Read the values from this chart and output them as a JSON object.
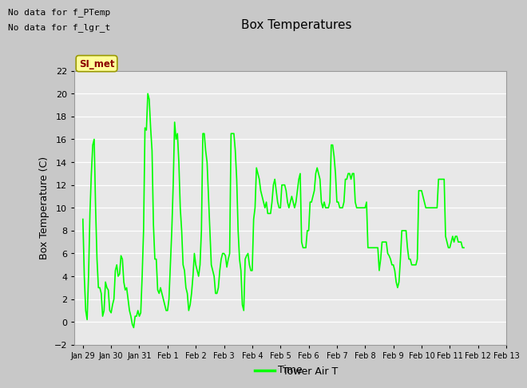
{
  "title": "Box Temperatures",
  "xlabel": "Time",
  "ylabel": "Box Temperature (C)",
  "ylim": [
    -2,
    22
  ],
  "yticks": [
    -2,
    0,
    2,
    4,
    6,
    8,
    10,
    12,
    14,
    16,
    18,
    20,
    22
  ],
  "line_color": "#00FF00",
  "line_width": 1.2,
  "bg_color": "#E8E8E8",
  "fig_bg": "#C8C8C8",
  "text_no_data1": "No data for f_PTemp",
  "text_no_data2": "No data for f_lgr_t",
  "tab_label": "SI_met",
  "tab_color": "#FFFF99",
  "tab_text_color": "#8B0000",
  "legend_label": "Tower Air T",
  "dates": [
    "Jan 29",
    "Jan 30",
    "Jan 31",
    "Feb 1",
    "Feb 2",
    "Feb 3",
    "Feb 4",
    "Feb 5",
    "Feb 6",
    "Feb 7",
    "Feb 8",
    "Feb 9",
    "Feb 10",
    "Feb 11",
    "Feb 12",
    "Feb 13"
  ],
  "data_points": [
    [
      0.0,
      9.0
    ],
    [
      0.05,
      4.0
    ],
    [
      0.1,
      1.0
    ],
    [
      0.15,
      0.2
    ],
    [
      0.2,
      4.0
    ],
    [
      0.25,
      9.5
    ],
    [
      0.3,
      13.0
    ],
    [
      0.35,
      15.5
    ],
    [
      0.4,
      16.0
    ],
    [
      0.45,
      10.0
    ],
    [
      0.5,
      5.5
    ],
    [
      0.55,
      3.0
    ],
    [
      0.6,
      3.0
    ],
    [
      0.65,
      2.5
    ],
    [
      0.7,
      0.5
    ],
    [
      0.75,
      1.0
    ],
    [
      0.8,
      3.5
    ],
    [
      0.85,
      3.0
    ],
    [
      0.9,
      2.8
    ],
    [
      0.95,
      1.0
    ],
    [
      1.0,
      0.8
    ],
    [
      1.05,
      1.5
    ],
    [
      1.1,
      2.0
    ],
    [
      1.15,
      4.5
    ],
    [
      1.2,
      5.0
    ],
    [
      1.25,
      4.0
    ],
    [
      1.3,
      4.2
    ],
    [
      1.35,
      5.8
    ],
    [
      1.4,
      5.5
    ],
    [
      1.45,
      3.5
    ],
    [
      1.5,
      2.8
    ],
    [
      1.55,
      3.0
    ],
    [
      1.6,
      2.0
    ],
    [
      1.65,
      1.0
    ],
    [
      1.7,
      0.5
    ],
    [
      1.75,
      -0.2
    ],
    [
      1.8,
      -0.5
    ],
    [
      1.85,
      0.5
    ],
    [
      1.9,
      0.5
    ],
    [
      1.95,
      1.0
    ],
    [
      2.0,
      0.5
    ],
    [
      2.05,
      0.8
    ],
    [
      2.1,
      4.0
    ],
    [
      2.15,
      8.0
    ],
    [
      2.2,
      17.0
    ],
    [
      2.25,
      16.8
    ],
    [
      2.3,
      20.0
    ],
    [
      2.35,
      19.5
    ],
    [
      2.4,
      17.0
    ],
    [
      2.45,
      15.0
    ],
    [
      2.5,
      8.5
    ],
    [
      2.55,
      5.5
    ],
    [
      2.6,
      5.5
    ],
    [
      2.65,
      2.8
    ],
    [
      2.7,
      2.5
    ],
    [
      2.75,
      3.0
    ],
    [
      2.8,
      2.5
    ],
    [
      2.85,
      2.0
    ],
    [
      2.9,
      1.5
    ],
    [
      2.95,
      1.0
    ],
    [
      3.0,
      1.0
    ],
    [
      3.05,
      2.0
    ],
    [
      3.1,
      5.0
    ],
    [
      3.15,
      8.0
    ],
    [
      3.2,
      12.0
    ],
    [
      3.25,
      17.5
    ],
    [
      3.3,
      16.0
    ],
    [
      3.35,
      16.5
    ],
    [
      3.4,
      14.0
    ],
    [
      3.45,
      10.0
    ],
    [
      3.5,
      8.0
    ],
    [
      3.55,
      5.0
    ],
    [
      3.6,
      4.5
    ],
    [
      3.65,
      3.0
    ],
    [
      3.7,
      2.5
    ],
    [
      3.75,
      1.0
    ],
    [
      3.8,
      1.5
    ],
    [
      3.85,
      2.5
    ],
    [
      3.9,
      4.0
    ],
    [
      3.95,
      6.0
    ],
    [
      4.0,
      5.0
    ],
    [
      4.05,
      4.5
    ],
    [
      4.1,
      4.0
    ],
    [
      4.15,
      5.0
    ],
    [
      4.2,
      8.0
    ],
    [
      4.25,
      16.5
    ],
    [
      4.3,
      16.5
    ],
    [
      4.35,
      15.0
    ],
    [
      4.4,
      14.0
    ],
    [
      4.45,
      11.0
    ],
    [
      4.5,
      8.0
    ],
    [
      4.55,
      5.0
    ],
    [
      4.6,
      4.5
    ],
    [
      4.65,
      4.0
    ],
    [
      4.7,
      2.5
    ],
    [
      4.75,
      2.5
    ],
    [
      4.8,
      3.0
    ],
    [
      4.85,
      4.5
    ],
    [
      4.9,
      5.5
    ],
    [
      4.95,
      6.0
    ],
    [
      5.0,
      6.0
    ],
    [
      5.05,
      5.8
    ],
    [
      5.1,
      4.8
    ],
    [
      5.15,
      5.5
    ],
    [
      5.2,
      6.0
    ],
    [
      5.25,
      16.5
    ],
    [
      5.3,
      16.5
    ],
    [
      5.35,
      16.5
    ],
    [
      5.4,
      15.0
    ],
    [
      5.45,
      12.5
    ],
    [
      5.5,
      8.0
    ],
    [
      5.55,
      5.5
    ],
    [
      5.6,
      4.5
    ],
    [
      5.65,
      1.5
    ],
    [
      5.7,
      1.0
    ],
    [
      5.75,
      5.5
    ],
    [
      5.8,
      5.8
    ],
    [
      5.85,
      6.0
    ],
    [
      5.9,
      5.0
    ],
    [
      5.95,
      4.5
    ],
    [
      6.0,
      4.5
    ],
    [
      6.05,
      9.0
    ],
    [
      6.1,
      10.0
    ],
    [
      6.15,
      13.5
    ],
    [
      6.2,
      13.0
    ],
    [
      6.25,
      12.5
    ],
    [
      6.3,
      11.5
    ],
    [
      6.35,
      11.0
    ],
    [
      6.4,
      10.5
    ],
    [
      6.45,
      10.0
    ],
    [
      6.5,
      10.5
    ],
    [
      6.55,
      9.5
    ],
    [
      6.6,
      9.5
    ],
    [
      6.65,
      9.5
    ],
    [
      6.7,
      10.5
    ],
    [
      6.75,
      12.0
    ],
    [
      6.8,
      12.5
    ],
    [
      6.85,
      11.5
    ],
    [
      6.9,
      10.5
    ],
    [
      6.95,
      10.0
    ],
    [
      7.0,
      10.0
    ],
    [
      7.05,
      12.0
    ],
    [
      7.1,
      12.0
    ],
    [
      7.15,
      12.0
    ],
    [
      7.2,
      11.5
    ],
    [
      7.25,
      10.5
    ],
    [
      7.3,
      10.0
    ],
    [
      7.35,
      10.5
    ],
    [
      7.4,
      11.0
    ],
    [
      7.45,
      10.5
    ],
    [
      7.5,
      10.0
    ],
    [
      7.55,
      10.5
    ],
    [
      7.6,
      11.5
    ],
    [
      7.65,
      12.5
    ],
    [
      7.7,
      13.0
    ],
    [
      7.75,
      7.0
    ],
    [
      7.8,
      6.5
    ],
    [
      7.85,
      6.5
    ],
    [
      7.9,
      6.5
    ],
    [
      7.95,
      8.0
    ],
    [
      8.0,
      8.0
    ],
    [
      8.05,
      10.5
    ],
    [
      8.1,
      10.5
    ],
    [
      8.15,
      11.0
    ],
    [
      8.2,
      11.5
    ],
    [
      8.25,
      13.0
    ],
    [
      8.3,
      13.5
    ],
    [
      8.35,
      13.0
    ],
    [
      8.4,
      12.5
    ],
    [
      8.45,
      10.5
    ],
    [
      8.5,
      10.0
    ],
    [
      8.55,
      10.5
    ],
    [
      8.6,
      10.0
    ],
    [
      8.65,
      10.0
    ],
    [
      8.7,
      10.0
    ],
    [
      8.75,
      10.5
    ],
    [
      8.8,
      15.5
    ],
    [
      8.85,
      15.5
    ],
    [
      8.9,
      14.5
    ],
    [
      8.95,
      13.0
    ],
    [
      9.0,
      10.5
    ],
    [
      9.05,
      10.5
    ],
    [
      9.1,
      10.0
    ],
    [
      9.15,
      10.0
    ],
    [
      9.2,
      10.0
    ],
    [
      9.25,
      10.5
    ],
    [
      9.3,
      12.5
    ],
    [
      9.35,
      12.5
    ],
    [
      9.4,
      13.0
    ],
    [
      9.45,
      13.0
    ],
    [
      9.5,
      12.5
    ],
    [
      9.55,
      13.0
    ],
    [
      9.6,
      13.0
    ],
    [
      9.65,
      10.5
    ],
    [
      9.7,
      10.0
    ],
    [
      9.75,
      10.0
    ],
    [
      9.8,
      10.0
    ],
    [
      9.85,
      10.0
    ],
    [
      9.9,
      10.0
    ],
    [
      9.95,
      10.0
    ],
    [
      10.0,
      10.0
    ],
    [
      10.05,
      10.5
    ],
    [
      10.1,
      6.5
    ],
    [
      10.15,
      6.5
    ],
    [
      10.2,
      6.5
    ],
    [
      10.25,
      6.5
    ],
    [
      10.3,
      6.5
    ],
    [
      10.35,
      6.5
    ],
    [
      10.4,
      6.5
    ],
    [
      10.45,
      6.5
    ],
    [
      10.5,
      4.5
    ],
    [
      10.55,
      5.5
    ],
    [
      10.6,
      7.0
    ],
    [
      10.65,
      7.0
    ],
    [
      10.7,
      7.0
    ],
    [
      10.75,
      7.0
    ],
    [
      10.8,
      6.0
    ],
    [
      10.85,
      5.8
    ],
    [
      10.9,
      5.5
    ],
    [
      10.95,
      5.0
    ],
    [
      11.0,
      5.0
    ],
    [
      11.05,
      4.5
    ],
    [
      11.1,
      3.5
    ],
    [
      11.15,
      3.0
    ],
    [
      11.2,
      3.5
    ],
    [
      11.25,
      5.5
    ],
    [
      11.3,
      8.0
    ],
    [
      11.35,
      8.0
    ],
    [
      11.4,
      8.0
    ],
    [
      11.45,
      8.0
    ],
    [
      11.5,
      6.5
    ],
    [
      11.55,
      5.5
    ],
    [
      11.6,
      5.5
    ],
    [
      11.65,
      5.0
    ],
    [
      11.7,
      5.0
    ],
    [
      11.75,
      5.0
    ],
    [
      11.8,
      5.0
    ],
    [
      11.85,
      5.5
    ],
    [
      11.9,
      11.5
    ],
    [
      11.95,
      11.5
    ],
    [
      12.0,
      11.5
    ],
    [
      12.05,
      11.0
    ],
    [
      12.1,
      10.5
    ],
    [
      12.15,
      10.0
    ],
    [
      12.2,
      10.0
    ],
    [
      12.25,
      10.0
    ],
    [
      12.3,
      10.0
    ],
    [
      12.35,
      10.0
    ],
    [
      12.4,
      10.0
    ],
    [
      12.45,
      10.0
    ],
    [
      12.5,
      10.0
    ],
    [
      12.55,
      10.0
    ],
    [
      12.6,
      12.5
    ],
    [
      12.65,
      12.5
    ],
    [
      12.7,
      12.5
    ],
    [
      12.75,
      12.5
    ],
    [
      12.8,
      12.5
    ],
    [
      12.85,
      7.5
    ],
    [
      12.9,
      7.0
    ],
    [
      12.95,
      6.5
    ],
    [
      13.0,
      6.5
    ],
    [
      13.05,
      7.0
    ],
    [
      13.1,
      7.5
    ],
    [
      13.15,
      7.0
    ],
    [
      13.2,
      7.5
    ],
    [
      13.25,
      7.5
    ],
    [
      13.3,
      7.0
    ],
    [
      13.35,
      7.0
    ],
    [
      13.4,
      7.0
    ],
    [
      13.45,
      6.5
    ],
    [
      13.5,
      6.5
    ]
  ]
}
